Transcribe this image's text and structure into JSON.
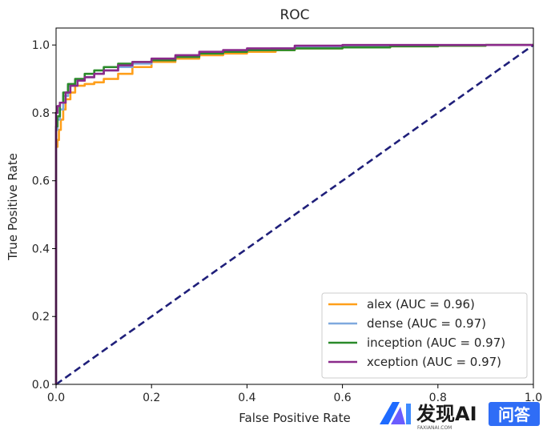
{
  "chart_data": {
    "type": "line",
    "title": "ROC",
    "xlabel": "False Positive Rate",
    "ylabel": "True Positive Rate",
    "xlim": [
      0.0,
      1.0
    ],
    "ylim": [
      0.0,
      1.05
    ],
    "xticks": [
      "0.0",
      "0.2",
      "0.4",
      "0.6",
      "0.8",
      "1.0"
    ],
    "yticks": [
      "0.0",
      "0.2",
      "0.4",
      "0.6",
      "0.8",
      "1.0"
    ],
    "grid": false,
    "legend_position": "lower-right",
    "baseline": {
      "x": [
        0,
        1
      ],
      "y": [
        0,
        1
      ],
      "color": "#1f1f7a",
      "style": "dashed"
    },
    "series": [
      {
        "name": "alex (AUC = 0.96)",
        "color": "#ff9f1a",
        "x": [
          0,
          0,
          0.003,
          0.006,
          0.01,
          0.015,
          0.02,
          0.03,
          0.04,
          0.06,
          0.08,
          0.1,
          0.13,
          0.16,
          0.2,
          0.25,
          0.3,
          0.35,
          0.4,
          0.46,
          0.5,
          0.6,
          0.7,
          0.8,
          0.9,
          1.0
        ],
        "y": [
          0,
          0.46,
          0.7,
          0.72,
          0.75,
          0.78,
          0.81,
          0.84,
          0.86,
          0.88,
          0.885,
          0.89,
          0.9,
          0.915,
          0.935,
          0.95,
          0.96,
          0.97,
          0.975,
          0.98,
          0.985,
          0.99,
          0.993,
          0.996,
          0.998,
          1.0
        ]
      },
      {
        "name": "dense (AUC = 0.97)",
        "color": "#7fa9de",
        "x": [
          0,
          0,
          0.003,
          0.008,
          0.015,
          0.025,
          0.04,
          0.06,
          0.08,
          0.1,
          0.13,
          0.16,
          0.2,
          0.25,
          0.3,
          0.35,
          0.4,
          0.45,
          0.5,
          0.6,
          0.7,
          0.8,
          0.9,
          1.0
        ],
        "y": [
          0,
          0.7,
          0.75,
          0.78,
          0.81,
          0.85,
          0.88,
          0.895,
          0.905,
          0.915,
          0.925,
          0.935,
          0.945,
          0.955,
          0.965,
          0.975,
          0.98,
          0.985,
          0.99,
          0.995,
          0.997,
          0.998,
          0.999,
          1.0
        ]
      },
      {
        "name": "inception (AUC = 0.97)",
        "color": "#2a8a2a",
        "x": [
          0,
          0,
          0.003,
          0.008,
          0.015,
          0.025,
          0.04,
          0.06,
          0.08,
          0.1,
          0.13,
          0.16,
          0.2,
          0.25,
          0.3,
          0.35,
          0.4,
          0.5,
          0.6,
          0.7,
          0.8,
          0.9,
          1.0
        ],
        "y": [
          0,
          0.72,
          0.76,
          0.79,
          0.83,
          0.86,
          0.885,
          0.9,
          0.915,
          0.925,
          0.935,
          0.945,
          0.95,
          0.955,
          0.965,
          0.975,
          0.98,
          0.985,
          0.99,
          0.993,
          0.996,
          0.998,
          1.0
        ]
      },
      {
        "name": "xception (AUC = 0.97)",
        "color": "#8b2a8b",
        "x": [
          0,
          0,
          0.003,
          0.008,
          0.02,
          0.03,
          0.045,
          0.06,
          0.08,
          0.1,
          0.13,
          0.16,
          0.2,
          0.25,
          0.3,
          0.35,
          0.4,
          0.5,
          0.6,
          0.7,
          0.8,
          0.9,
          1.0
        ],
        "y": [
          0,
          0.76,
          0.8,
          0.82,
          0.83,
          0.86,
          0.88,
          0.895,
          0.905,
          0.915,
          0.925,
          0.94,
          0.95,
          0.96,
          0.97,
          0.98,
          0.985,
          0.99,
          0.998,
          1.0,
          1.0,
          1.0,
          1.0
        ]
      }
    ]
  },
  "watermark": {
    "brand": "发现AI",
    "domain": "FAXIANAI.COM",
    "button": "问答"
  }
}
